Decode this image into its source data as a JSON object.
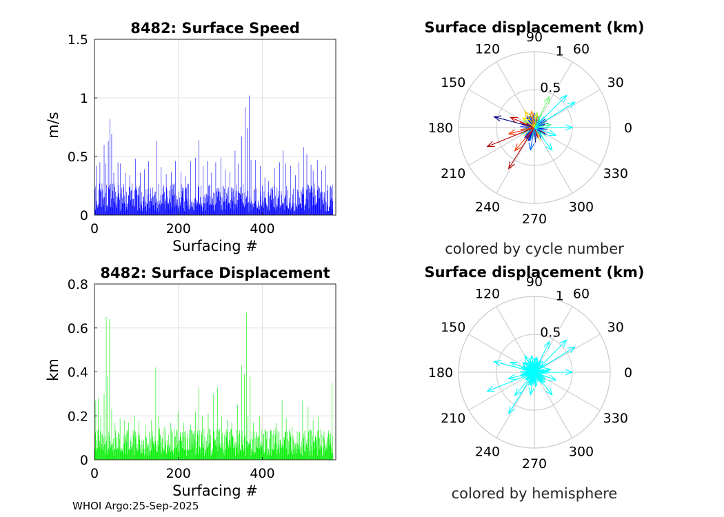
{
  "footer": "WHOI Argo:25-Sep-2025",
  "chart_data": [
    {
      "type": "bar",
      "title": "8482: Surface Speed",
      "xlabel": "Surfacing #",
      "ylabel": "m/s",
      "xlim": [
        0,
        575
      ],
      "ylim": [
        0,
        1.5
      ],
      "xticks": [
        0,
        200,
        400
      ],
      "yticks": [
        0,
        0.5,
        1,
        1.5
      ],
      "ytick_labels": [
        "0",
        "0.5",
        "1",
        "1.5"
      ],
      "grid": true,
      "color": "#0000ff",
      "n_points": 568,
      "peaks": [
        {
          "x": 3,
          "y": 0.42
        },
        {
          "x": 12,
          "y": 0.45
        },
        {
          "x": 22,
          "y": 0.6
        },
        {
          "x": 26,
          "y": 0.44
        },
        {
          "x": 32,
          "y": 0.63
        },
        {
          "x": 36,
          "y": 0.82
        },
        {
          "x": 40,
          "y": 0.69
        },
        {
          "x": 45,
          "y": 0.36
        },
        {
          "x": 55,
          "y": 0.45
        },
        {
          "x": 61,
          "y": 0.44
        },
        {
          "x": 72,
          "y": 0.36
        },
        {
          "x": 83,
          "y": 0.34
        },
        {
          "x": 97,
          "y": 0.48
        },
        {
          "x": 108,
          "y": 0.36
        },
        {
          "x": 118,
          "y": 0.39
        },
        {
          "x": 128,
          "y": 0.46
        },
        {
          "x": 148,
          "y": 0.63
        },
        {
          "x": 158,
          "y": 0.41
        },
        {
          "x": 170,
          "y": 0.35
        },
        {
          "x": 182,
          "y": 0.37
        },
        {
          "x": 192,
          "y": 0.46
        },
        {
          "x": 205,
          "y": 0.37
        },
        {
          "x": 216,
          "y": 0.33
        },
        {
          "x": 228,
          "y": 0.46
        },
        {
          "x": 240,
          "y": 0.49
        },
        {
          "x": 248,
          "y": 0.64
        },
        {
          "x": 258,
          "y": 0.42
        },
        {
          "x": 268,
          "y": 0.46
        },
        {
          "x": 278,
          "y": 0.36
        },
        {
          "x": 288,
          "y": 0.45
        },
        {
          "x": 300,
          "y": 0.49
        },
        {
          "x": 310,
          "y": 0.39
        },
        {
          "x": 322,
          "y": 0.37
        },
        {
          "x": 334,
          "y": 0.55
        },
        {
          "x": 342,
          "y": 0.44
        },
        {
          "x": 350,
          "y": 0.67
        },
        {
          "x": 358,
          "y": 0.92
        },
        {
          "x": 363,
          "y": 0.74
        },
        {
          "x": 368,
          "y": 1.02
        },
        {
          "x": 372,
          "y": 0.47
        },
        {
          "x": 383,
          "y": 0.47
        },
        {
          "x": 394,
          "y": 0.42
        },
        {
          "x": 405,
          "y": 0.32
        },
        {
          "x": 414,
          "y": 0.29
        },
        {
          "x": 428,
          "y": 0.4
        },
        {
          "x": 440,
          "y": 0.45
        },
        {
          "x": 448,
          "y": 0.55
        },
        {
          "x": 455,
          "y": 0.44
        },
        {
          "x": 466,
          "y": 0.42
        },
        {
          "x": 478,
          "y": 0.34
        },
        {
          "x": 486,
          "y": 0.45
        },
        {
          "x": 498,
          "y": 0.58
        },
        {
          "x": 505,
          "y": 0.52
        },
        {
          "x": 515,
          "y": 0.43
        },
        {
          "x": 520,
          "y": 0.38
        },
        {
          "x": 530,
          "y": 0.47
        },
        {
          "x": 540,
          "y": 0.38
        },
        {
          "x": 550,
          "y": 0.42
        },
        {
          "x": 562,
          "y": 0.25
        },
        {
          "x": 566,
          "y": 0.26
        }
      ]
    },
    {
      "type": "bar",
      "title": "8482: Surface Displacement",
      "xlabel": "Surfacing #",
      "ylabel": "km",
      "xlim": [
        0,
        575
      ],
      "ylim": [
        0,
        0.8
      ],
      "xticks": [
        0,
        200,
        400
      ],
      "yticks": [
        0,
        0.2,
        0.4,
        0.6,
        0.8
      ],
      "ytick_labels": [
        "0",
        "0.2",
        "0.4",
        "0.6",
        "0.8"
      ],
      "grid": true,
      "color": "#00ee00",
      "n_points": 568,
      "peaks": [
        {
          "x": 2,
          "y": 0.27
        },
        {
          "x": 8,
          "y": 0.28
        },
        {
          "x": 14,
          "y": 0.2
        },
        {
          "x": 22,
          "y": 0.3
        },
        {
          "x": 27,
          "y": 0.65
        },
        {
          "x": 30,
          "y": 0.38
        },
        {
          "x": 35,
          "y": 0.64
        },
        {
          "x": 40,
          "y": 0.23
        },
        {
          "x": 48,
          "y": 0.17
        },
        {
          "x": 60,
          "y": 0.19
        },
        {
          "x": 70,
          "y": 0.18
        },
        {
          "x": 80,
          "y": 0.17
        },
        {
          "x": 95,
          "y": 0.2
        },
        {
          "x": 105,
          "y": 0.18
        },
        {
          "x": 120,
          "y": 0.16
        },
        {
          "x": 135,
          "y": 0.18
        },
        {
          "x": 145,
          "y": 0.42
        },
        {
          "x": 152,
          "y": 0.2
        },
        {
          "x": 165,
          "y": 0.15
        },
        {
          "x": 180,
          "y": 0.17
        },
        {
          "x": 198,
          "y": 0.22
        },
        {
          "x": 212,
          "y": 0.17
        },
        {
          "x": 228,
          "y": 0.16
        },
        {
          "x": 240,
          "y": 0.22
        },
        {
          "x": 248,
          "y": 0.33
        },
        {
          "x": 256,
          "y": 0.2
        },
        {
          "x": 270,
          "y": 0.21
        },
        {
          "x": 282,
          "y": 0.3
        },
        {
          "x": 292,
          "y": 0.33
        },
        {
          "x": 302,
          "y": 0.2
        },
        {
          "x": 315,
          "y": 0.18
        },
        {
          "x": 326,
          "y": 0.17
        },
        {
          "x": 340,
          "y": 0.25
        },
        {
          "x": 350,
          "y": 0.43
        },
        {
          "x": 356,
          "y": 0.39
        },
        {
          "x": 361,
          "y": 0.67
        },
        {
          "x": 365,
          "y": 0.2
        },
        {
          "x": 370,
          "y": 0.38
        },
        {
          "x": 378,
          "y": 0.17
        },
        {
          "x": 392,
          "y": 0.2
        },
        {
          "x": 405,
          "y": 0.14
        },
        {
          "x": 418,
          "y": 0.13
        },
        {
          "x": 432,
          "y": 0.17
        },
        {
          "x": 446,
          "y": 0.27
        },
        {
          "x": 456,
          "y": 0.19
        },
        {
          "x": 470,
          "y": 0.15
        },
        {
          "x": 482,
          "y": 0.13
        },
        {
          "x": 495,
          "y": 0.27
        },
        {
          "x": 508,
          "y": 0.24
        },
        {
          "x": 520,
          "y": 0.18
        },
        {
          "x": 532,
          "y": 0.2
        },
        {
          "x": 546,
          "y": 0.13
        },
        {
          "x": 556,
          "y": 0.12
        },
        {
          "x": 565,
          "y": 0.35
        }
      ]
    },
    {
      "type": "polar",
      "title": "Surface displacement (km)",
      "subtitle": "colored by cycle number",
      "rmax": 1,
      "radial_ticks": [
        0.5,
        1
      ],
      "radial_tick_labels": [
        "0.5",
        "1"
      ],
      "angle_labels": [
        "0",
        "30",
        "60",
        "90",
        "120",
        "150",
        "180",
        "210",
        "240",
        "270",
        "300",
        "330"
      ],
      "arrows": [
        {
          "theta": 32,
          "r": 0.63,
          "color": "#00ffff"
        },
        {
          "theta": 45,
          "r": 0.6,
          "color": "#00ffff"
        },
        {
          "theta": 64,
          "r": 0.45,
          "color": "#66ff66"
        },
        {
          "theta": 0,
          "r": 0.5,
          "color": "#00ffff"
        },
        {
          "theta": 340,
          "r": 0.3,
          "color": "#00ffff"
        },
        {
          "theta": 308,
          "r": 0.38,
          "color": "#00ffff"
        },
        {
          "theta": 165,
          "r": 0.55,
          "color": "#00008b"
        },
        {
          "theta": 157,
          "r": 0.34,
          "color": "#d00000"
        },
        {
          "theta": 202,
          "r": 0.67,
          "color": "#b00000"
        },
        {
          "theta": 194,
          "r": 0.35,
          "color": "#ff3300"
        },
        {
          "theta": 238,
          "r": 0.64,
          "color": "#b00000"
        },
        {
          "theta": 230,
          "r": 0.4,
          "color": "#ff3300"
        },
        {
          "theta": 260,
          "r": 0.3,
          "color": "#0066ff"
        },
        {
          "theta": 120,
          "r": 0.25,
          "color": "#ffcc00"
        },
        {
          "theta": 100,
          "r": 0.22,
          "color": "#ff9900"
        },
        {
          "theta": 140,
          "r": 0.2,
          "color": "#ffee00"
        },
        {
          "theta": 80,
          "r": 0.2,
          "color": "#99ff33"
        },
        {
          "theta": 10,
          "r": 0.22,
          "color": "#33ff99"
        }
      ],
      "cluster_radius": 0.2
    },
    {
      "type": "polar",
      "title": "Surface displacement (km)",
      "subtitle": "colored by hemisphere",
      "rmax": 1,
      "radial_ticks": [
        0.5,
        1
      ],
      "radial_tick_labels": [
        "0.5",
        "1"
      ],
      "angle_labels": [
        "0",
        "30",
        "60",
        "90",
        "120",
        "150",
        "180",
        "210",
        "240",
        "270",
        "300",
        "330"
      ],
      "arrows": [
        {
          "theta": 32,
          "r": 0.63,
          "color": "#00ffff"
        },
        {
          "theta": 45,
          "r": 0.6,
          "color": "#00ffff"
        },
        {
          "theta": 64,
          "r": 0.45,
          "color": "#00ffff"
        },
        {
          "theta": 0,
          "r": 0.5,
          "color": "#00ffff"
        },
        {
          "theta": 340,
          "r": 0.3,
          "color": "#00ffff"
        },
        {
          "theta": 308,
          "r": 0.38,
          "color": "#00ffff"
        },
        {
          "theta": 165,
          "r": 0.55,
          "color": "#00ffff"
        },
        {
          "theta": 157,
          "r": 0.34,
          "color": "#00ffff"
        },
        {
          "theta": 202,
          "r": 0.67,
          "color": "#00ffff"
        },
        {
          "theta": 194,
          "r": 0.35,
          "color": "#00ffff"
        },
        {
          "theta": 238,
          "r": 0.64,
          "color": "#00ffff"
        },
        {
          "theta": 230,
          "r": 0.4,
          "color": "#00ffff"
        },
        {
          "theta": 260,
          "r": 0.3,
          "color": "#00ffff"
        },
        {
          "theta": 120,
          "r": 0.25,
          "color": "#00ffff"
        },
        {
          "theta": 100,
          "r": 0.22,
          "color": "#00ffff"
        },
        {
          "theta": 140,
          "r": 0.2,
          "color": "#00ffff"
        },
        {
          "theta": 80,
          "r": 0.2,
          "color": "#00ffff"
        },
        {
          "theta": 10,
          "r": 0.22,
          "color": "#00ffff"
        }
      ],
      "cluster_radius": 0.2
    }
  ]
}
